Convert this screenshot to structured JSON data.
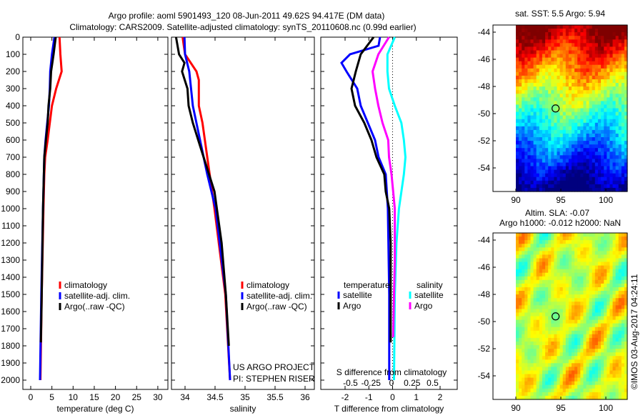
{
  "title_line1": "Argo profile: aoml 5901493_120 08-Jun-2011 49.62S 94.417E (DM data)",
  "title_line2": "Climatology: CARS2009. Satellite-adjusted climatology: synTS_20110608.nc (0.99d earlier)",
  "colors": {
    "climatology": "#ff0000",
    "satellite": "#0000ff",
    "argo": "#000000",
    "sat_salinity": "#00ffff",
    "argo_salinity": "#ff00ff"
  },
  "chart_data": [
    {
      "type": "line",
      "name": "temperature",
      "xlabel": "temperature (deg C)",
      "xlim": [
        -2,
        31
      ],
      "ylim": [
        2055,
        0
      ],
      "xticks": [
        0,
        5,
        10,
        15,
        20,
        25,
        30
      ],
      "yticks": [
        0,
        100,
        200,
        300,
        400,
        500,
        600,
        700,
        800,
        900,
        1000,
        1100,
        1200,
        1300,
        1400,
        1500,
        1600,
        1700,
        1800,
        1900,
        2000
      ],
      "legend": [
        "climatology",
        "satellite-adj. clim.",
        "Argo(..raw -QC)"
      ],
      "series": [
        {
          "name": "climatology",
          "color": "climatology",
          "depth": [
            0,
            100,
            200,
            300,
            400,
            500,
            600,
            700,
            800,
            1000,
            1500,
            2000
          ],
          "values": [
            6.8,
            7.0,
            7.3,
            6.0,
            5.0,
            4.5,
            4.0,
            3.4,
            3.2,
            3.0,
            2.6,
            2.3
          ]
        },
        {
          "name": "satellite-adj. clim.",
          "color": "satellite",
          "depth": [
            0,
            100,
            200,
            300,
            400,
            500,
            600,
            700,
            1000,
            1500,
            2000
          ],
          "values": [
            5.6,
            5.0,
            4.6,
            4.5,
            4.3,
            3.9,
            3.5,
            3.2,
            2.9,
            2.5,
            2.2
          ]
        },
        {
          "name": "Argo(..raw -QC)",
          "color": "argo",
          "depth": [
            0,
            100,
            200,
            300,
            400,
            500,
            600,
            700,
            900,
            1000,
            1500,
            1780
          ],
          "values": [
            5.9,
            5.4,
            4.8,
            4.6,
            4.2,
            4.0,
            3.6,
            3.2,
            3.0,
            2.9,
            2.6,
            2.4
          ]
        }
      ]
    },
    {
      "type": "line",
      "name": "salinity",
      "xlabel": "salinity",
      "xlim": [
        33.77,
        36.1
      ],
      "ylim": [
        2055,
        0
      ],
      "xticks": [
        34,
        34.5,
        35,
        35.5,
        36
      ],
      "legend": [
        "climatology",
        "satellite-adj. clim.",
        "Argo(..raw -QC)"
      ],
      "annotation": [
        "US ARGO PROJECT",
        "PI: STEPHEN RISER"
      ],
      "series": [
        {
          "name": "climatology",
          "color": "climatology",
          "depth": [
            0,
            100,
            200,
            250,
            400,
            500,
            700,
            1000,
            1500,
            2000
          ],
          "values": [
            33.96,
            34.0,
            34.19,
            34.23,
            34.23,
            34.29,
            34.37,
            34.49,
            34.67,
            34.75
          ]
        },
        {
          "name": "satellite-adj. clim.",
          "color": "satellite",
          "depth": [
            0,
            100,
            200,
            400,
            600,
            800,
            1000,
            1500,
            2000
          ],
          "values": [
            33.99,
            34.0,
            34.07,
            34.13,
            34.25,
            34.37,
            34.51,
            34.68,
            34.75
          ]
        },
        {
          "name": "Argo(..raw -QC)",
          "color": "argo",
          "depth": [
            0,
            100,
            150,
            200,
            300,
            400,
            500,
            700,
            900,
            1200,
            1500,
            1800
          ],
          "values": [
            33.85,
            33.9,
            33.99,
            33.95,
            34.04,
            34.06,
            34.13,
            34.31,
            34.49,
            34.61,
            34.68,
            34.73
          ]
        }
      ]
    },
    {
      "type": "line",
      "name": "difference",
      "xlabel": "T difference from climatology",
      "x2label": "S difference from climatology",
      "xlim": [
        -3.0,
        2.75
      ],
      "ylim": [
        2055,
        0
      ],
      "xticks": [
        -2,
        -1,
        0,
        1,
        2
      ],
      "x2lim": [
        -0.86,
        0.8
      ],
      "x2ticks": [
        -0.5,
        -0.25,
        0,
        0.25,
        0.5
      ],
      "x2ticklabels": [
        "-0.5",
        "-0.25",
        "0",
        "0.25",
        "0.5"
      ],
      "legend": {
        "temperature": "temperature",
        "salinity": "salinity",
        "items": [
          "satellite",
          "Argo",
          "satellite",
          "Argo"
        ]
      },
      "series": [
        {
          "name": "T satellite",
          "axis": "T",
          "color": "satellite",
          "depth": [
            0,
            50,
            100,
            150,
            200,
            300,
            400,
            500,
            600,
            700,
            800,
            1000,
            1500,
            2000
          ],
          "values": [
            -0.53,
            -0.59,
            -1.79,
            -2.15,
            -1.94,
            -1.49,
            -1.34,
            -1.04,
            -0.74,
            -0.59,
            -0.29,
            -0.2,
            -0.14,
            -0.14
          ]
        },
        {
          "name": "T Argo",
          "axis": "T",
          "color": "argo",
          "depth": [
            0,
            100,
            200,
            300,
            400,
            500,
            600,
            700,
            800,
            900,
            1000,
            1200,
            1500,
            1780
          ],
          "values": [
            -0.8,
            -1.34,
            -1.55,
            -1.73,
            -1.58,
            -1.19,
            -0.89,
            -0.68,
            -0.35,
            -0.29,
            -0.14,
            -0.08,
            -0.08,
            -0.08
          ]
        },
        {
          "name": "S satellite",
          "axis": "S",
          "color": "sat_salinity",
          "depth": [
            0,
            100,
            200,
            300,
            400,
            500,
            600,
            700,
            800,
            1000,
            1200,
            1500,
            2000
          ],
          "values": [
            0.04,
            -0.05,
            -0.05,
            -0.03,
            0.04,
            0.12,
            0.15,
            0.17,
            0.15,
            0.09,
            0.06,
            0.04,
            0.03
          ]
        },
        {
          "name": "S Argo",
          "axis": "S",
          "color": "argo_salinity",
          "depth": [
            0,
            100,
            200,
            300,
            400,
            500,
            600,
            700,
            800,
            1000,
            1300,
            1500,
            1750
          ],
          "values": [
            -0.03,
            -0.16,
            -0.23,
            -0.2,
            -0.16,
            -0.11,
            -0.04,
            -0.03,
            0,
            0.04,
            0.04,
            0.03,
            0.02
          ]
        }
      ]
    },
    {
      "type": "heatmap",
      "name": "sst-map",
      "title": "sat. SST: 5.5 Argo: 5.94",
      "xlim": [
        87.4,
        102.4
      ],
      "ylim": [
        -55.7,
        -43.6
      ],
      "xticks": [
        90,
        95,
        100
      ],
      "yticks": [
        -44,
        -46,
        -48,
        -50,
        -52,
        -54
      ],
      "data_extent": [
        90,
        102.4
      ],
      "marker": [
        94.417,
        -49.62
      ]
    },
    {
      "type": "heatmap",
      "name": "sla-map",
      "title": "Altim. SLA: -0.07",
      "subtitle": "Argo h1000: -0.012 h2000: NaN",
      "xlim": [
        87.4,
        102.4
      ],
      "ylim": [
        -55.7,
        -43.6
      ],
      "xticks": [
        90,
        95,
        100
      ],
      "yticks": [
        -44,
        -46,
        -48,
        -50,
        -52,
        -54
      ],
      "data_extent": [
        90,
        102.4
      ],
      "marker": [
        94.417,
        -49.62
      ]
    }
  ],
  "credit": "©IMOS 03-Aug-2017 04:24:11"
}
